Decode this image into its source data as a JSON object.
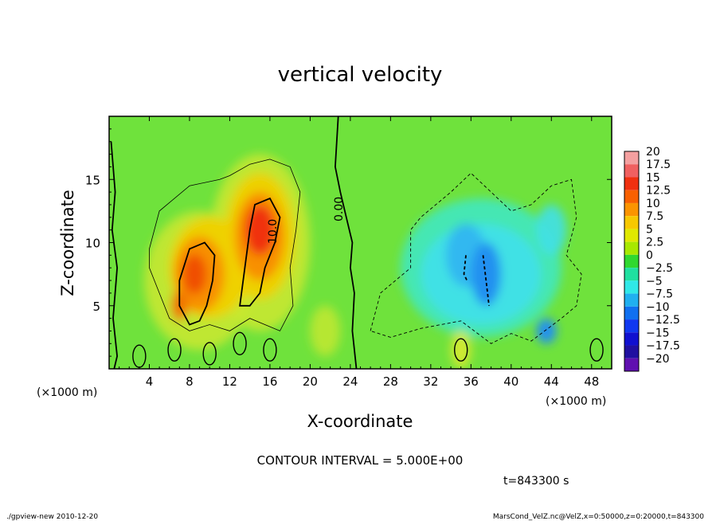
{
  "chart_data": {
    "type": "heatmap",
    "title": "vertical velocity",
    "xlabel": "X-coordinate",
    "ylabel": "Z-coordinate",
    "x_unit_left": "(×1000 m)",
    "x_unit_right": "(×1000 m)",
    "xlim": [
      0,
      50
    ],
    "ylim": [
      0,
      20
    ],
    "x_ticks": [
      4,
      8,
      12,
      16,
      20,
      24,
      28,
      32,
      36,
      40,
      44,
      48
    ],
    "y_ticks": [
      5,
      10,
      15
    ],
    "contour_labels": [
      "0.00",
      "10.0"
    ],
    "colorbar_levels": [
      20,
      17.5,
      15,
      12.5,
      10,
      7.5,
      5,
      2.5,
      0,
      -2.5,
      -5,
      -7.5,
      -10,
      -12.5,
      -15,
      -17.5,
      -20
    ],
    "colorbar_level_labels": [
      "20",
      "17.5",
      "15",
      "12.5",
      "10",
      "7.5",
      "5",
      "2.5",
      "0",
      "−2.5",
      "−5",
      "−7.5",
      "−10",
      "−12.5",
      "−15",
      "−17.5",
      "−20"
    ],
    "colorbar_colors": [
      "#f4a0a0",
      "#f06060",
      "#f03010",
      "#f86000",
      "#fb9400",
      "#f7c800",
      "#e0e800",
      "#a8e800",
      "#30d830",
      "#20e0a0",
      "#30e8e8",
      "#20b0f0",
      "#1070f0",
      "#1038f0",
      "#1010d0",
      "#2010a0",
      "#6010b0"
    ],
    "background_color": "#6fe23c",
    "features": [
      {
        "type": "updraft",
        "x_center": 9,
        "z_center": 7.5,
        "peak": 12.5
      },
      {
        "type": "updraft",
        "x_center": 15,
        "z_center": 10.5,
        "peak": 15
      },
      {
        "type": "downdraft",
        "x_center": 37,
        "z_center": 8,
        "peak": -10
      }
    ],
    "contour_interval_text": "CONTOUR INTERVAL = 5.000E+00",
    "time_text": "t=843300 s"
  },
  "footer": {
    "left": "./gpview-new  2010-12-20",
    "right": "MarsCond_VelZ.nc@VelZ,x=0:50000,z=0:20000,t=843300"
  }
}
